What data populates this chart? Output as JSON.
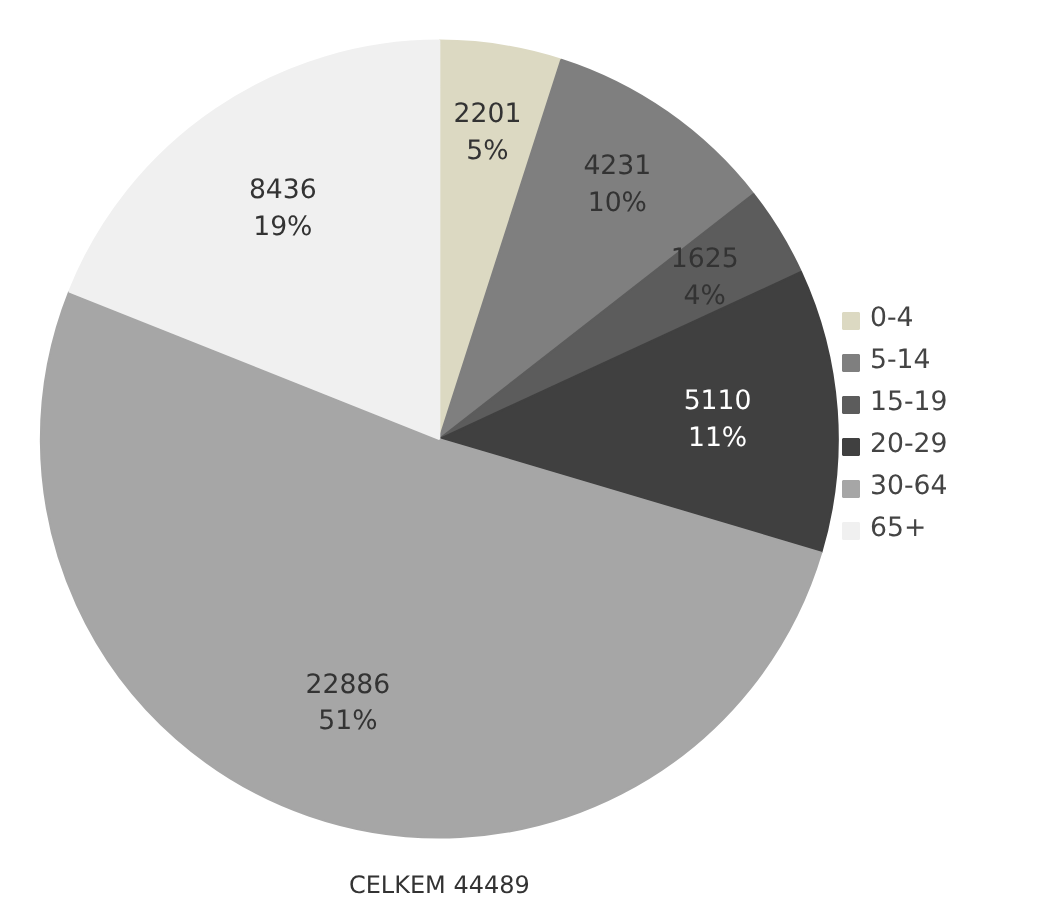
{
  "chart_data": {
    "type": "pie",
    "categories": [
      "0-4",
      "5-14",
      "15-19",
      "20-29",
      "30-64",
      "65+"
    ],
    "values": [
      2201,
      4231,
      1625,
      5110,
      22886,
      8436
    ],
    "colors": [
      "#dcd9c2",
      "#7f7f7f",
      "#5c5c5c",
      "#404040",
      "#a6a6a6",
      "#f0f0f0"
    ],
    "value_labels": [
      "2201\n5%",
      "4231\n10%",
      "1625\n4%",
      "5110\n11%",
      "22886\n51%",
      "8436\n19%"
    ],
    "legend": "right",
    "annotations": [
      "CELKEM 44489"
    ]
  }
}
